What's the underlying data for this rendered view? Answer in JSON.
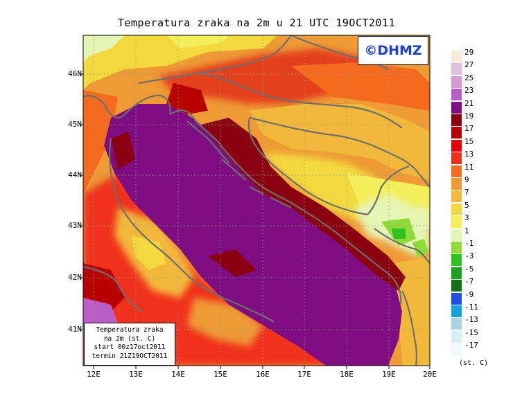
{
  "title": "Temperatura zraka na 2m u 21 UTC 19OCT2011",
  "logo_text": "©DHMZ",
  "info_box": {
    "line1": "Temperatura zraka",
    "line2": "na 2m (st. C)",
    "line3": "start 00z17oct2011",
    "line4": "termin 21Z19OCT2011"
  },
  "latitude_labels": [
    "46N",
    "45N",
    "44N",
    "43N",
    "42N",
    "41N"
  ],
  "longitude_labels": [
    "12E",
    "13E",
    "14E",
    "15E",
    "16E",
    "17E",
    "18E",
    "19E",
    "20E"
  ],
  "legend": {
    "unit": "(st. C)",
    "labels": [
      "29",
      "27",
      "25",
      "23",
      "21",
      "19",
      "17",
      "15",
      "13",
      "11",
      "9",
      "7",
      "5",
      "3",
      "1",
      "-1",
      "-3",
      "-5",
      "-7",
      "-9",
      "-11",
      "-13",
      "-15",
      "-17"
    ],
    "colors": [
      "#fbe9d9",
      "#ddc0dc",
      "#d599d6",
      "#bb5dc6",
      "#7e0d82",
      "#8b0010",
      "#b80000",
      "#e40000",
      "#f0301a",
      "#f46b1f",
      "#ee9a35",
      "#f2b83a",
      "#f3d93d",
      "#f3ef5b",
      "#e6f4b4",
      "#8fdc38",
      "#2fc021",
      "#1aa31a",
      "#126e12",
      "#1f4fe2",
      "#14a2e0",
      "#a6d4e4",
      "#d8f0f3",
      "#f1fbfb"
    ]
  },
  "map_colors": {
    "sea": "#7e0d82",
    "coastline": "#6e6e6e",
    "borders": "#6e6e6e"
  }
}
